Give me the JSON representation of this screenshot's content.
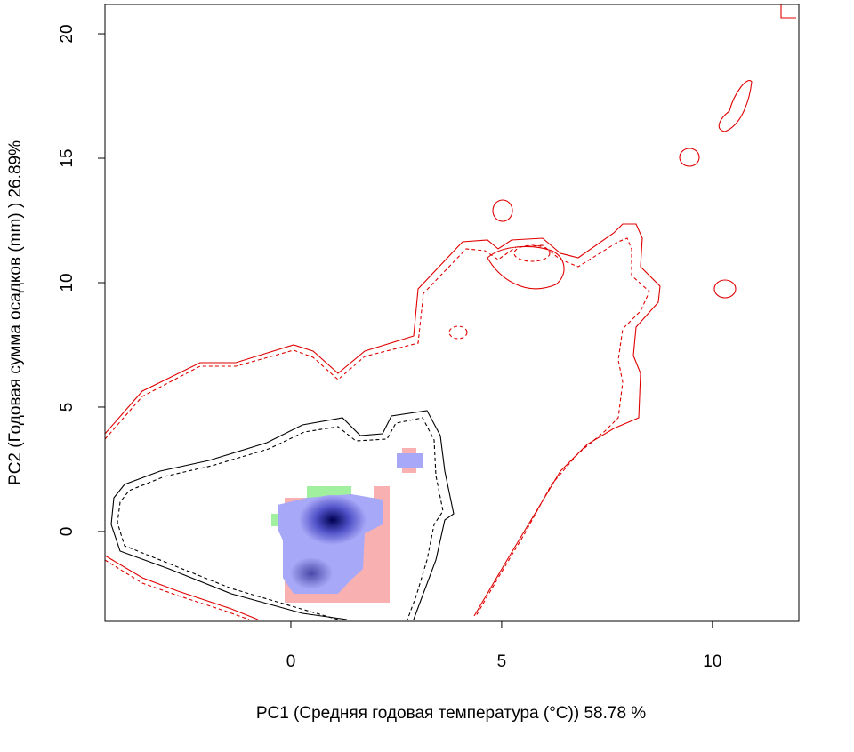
{
  "chart_data": {
    "type": "contour",
    "x_label": "PC1 (Средняя годовая температура (°C)) 58.78 %",
    "y_label": "PC2 (Годовая сумма осадков  (mm) ) 26.89%",
    "xlim": [
      -4.41,
      12.05
    ],
    "ylim": [
      -3.61,
      21.18
    ],
    "xticks": [
      0,
      5,
      10
    ],
    "yticks": [
      0,
      5,
      10,
      15,
      20
    ]
  }
}
